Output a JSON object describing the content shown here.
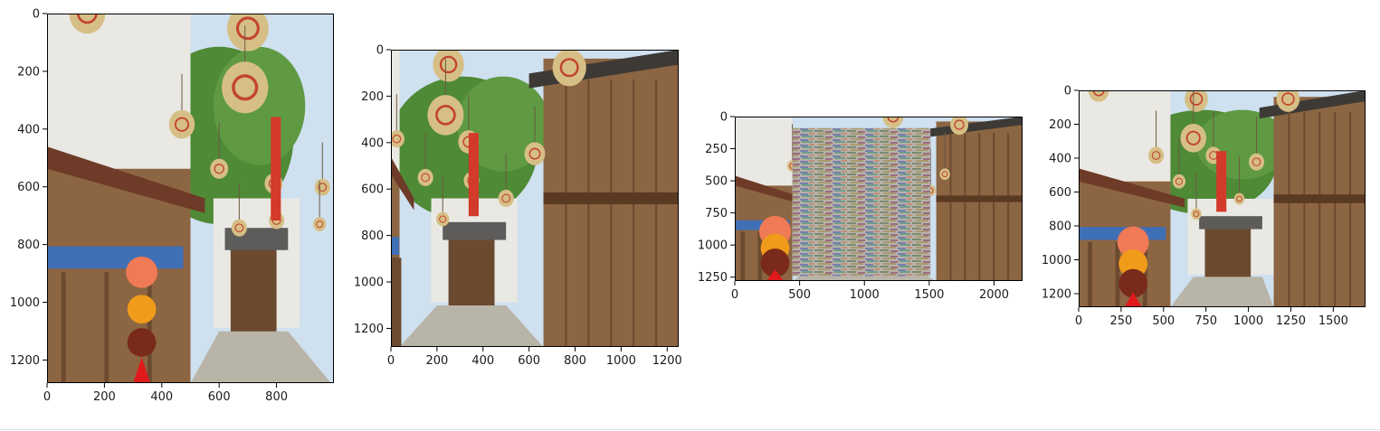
{
  "chart_data": [
    {
      "type": "image",
      "description_role": "original",
      "xlim": [
        0,
        1000
      ],
      "ylim": [
        1280,
        0
      ],
      "xticks": [
        0,
        200,
        400,
        600,
        800
      ],
      "yticks": [
        0,
        200,
        400,
        600,
        800,
        1000,
        1200
      ],
      "xtick_labels": [
        "0",
        "200",
        "400",
        "600",
        "800"
      ],
      "ytick_labels": [
        "0",
        "200",
        "400",
        "600",
        "800",
        "1000",
        "1200"
      ]
    },
    {
      "type": "image",
      "xlim": [
        0,
        1250
      ],
      "ylim": [
        1280,
        0
      ],
      "xticks": [
        0,
        200,
        400,
        600,
        800,
        1000,
        1200
      ],
      "yticks": [
        0,
        200,
        400,
        600,
        800,
        1000,
        1200
      ],
      "xtick_labels": [
        "0",
        "200",
        "400",
        "600",
        "800",
        "1000",
        "1200"
      ],
      "ytick_labels": [
        "0",
        "200",
        "400",
        "600",
        "800",
        "1000",
        "1200"
      ]
    },
    {
      "type": "image",
      "scrambled_region": true,
      "xlim": [
        0,
        2220
      ],
      "ylim": [
        1280,
        0
      ],
      "xticks": [
        0,
        500,
        1000,
        1500,
        2000
      ],
      "yticks": [
        0,
        250,
        500,
        750,
        1000,
        1250
      ],
      "xtick_labels": [
        "0",
        "500",
        "1000",
        "1500",
        "2000"
      ],
      "ytick_labels": [
        "0",
        "250",
        "500",
        "750",
        "1000",
        "1250"
      ]
    },
    {
      "type": "image",
      "xlim": [
        0,
        1690
      ],
      "ylim": [
        1280,
        0
      ],
      "xticks": [
        0,
        250,
        500,
        750,
        1000,
        1250,
        1500
      ],
      "yticks": [
        0,
        200,
        400,
        600,
        800,
        1000,
        1200
      ],
      "xtick_labels": [
        "0",
        "250",
        "500",
        "750",
        "1000",
        "1250",
        "1500"
      ],
      "ytick_labels": [
        "0",
        "200",
        "400",
        "600",
        "800",
        "1000",
        "1200"
      ]
    }
  ],
  "colors": {
    "sky": "#cfe0ef",
    "wall_white": "#e9e8e3",
    "tree_green": "#4f8a36",
    "wood_dark": "#6b4a2f",
    "wood_light": "#8c6542",
    "roof_grey": "#5d5c5a",
    "awning_blue": "#3f6fb5",
    "lantern": "#d6bf86",
    "lantern_red": "#c2452c",
    "pavement": "#b9b4a8",
    "peach": "#ef7a55",
    "orange": "#f19b1a"
  }
}
